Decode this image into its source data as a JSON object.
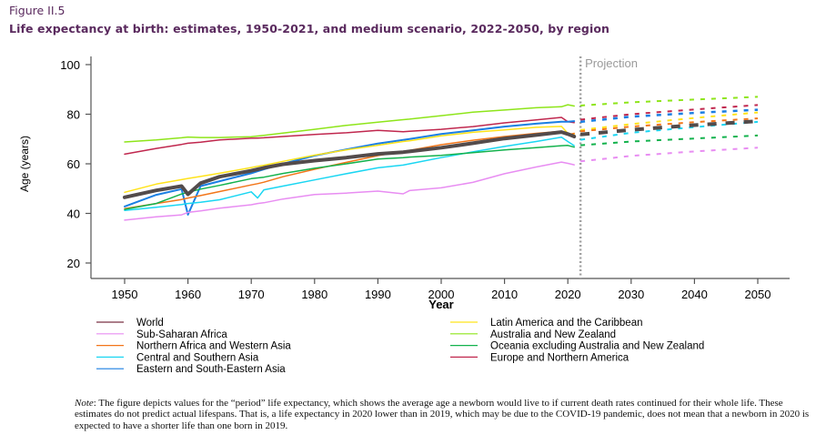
{
  "figure": {
    "label": "Figure II.5",
    "title": "Life expectancy at birth: estimates, 1950-2021, and medium scenario, 2022-2050, by region"
  },
  "note": {
    "prefix": "Note",
    "text": ": The figure depicts values for the “period” life expectancy, which shows the average age a newborn would live to if current death rates continued for their whole life. These estimates do not predict actual lifespans. That is, a life expectancy in 2020 lower than in 2019, which may be due to the COVID-19 pandemic, does not mean that a newborn in 2020 is expected to have a shorter life than one born in 2019."
  },
  "chart_data": {
    "type": "line",
    "title": "Life expectancy at birth: estimates, 1950-2021, and medium scenario, 2022-2050, by region",
    "xlabel": "Year",
    "ylabel": "Age (years)",
    "xlim": [
      1945,
      2055
    ],
    "ylim": [
      17,
      102
    ],
    "xticks": [
      1950,
      1960,
      1970,
      1980,
      1990,
      2000,
      2010,
      2020,
      2030,
      2040,
      2050
    ],
    "yticks": [
      20,
      40,
      60,
      80,
      100
    ],
    "grid": false,
    "projection_start": 2022,
    "projection_label": "Projection",
    "legend_position": "bottom",
    "estimate_years": [
      1950,
      1955,
      1959,
      1960,
      1962,
      1965,
      1970,
      1971,
      1972,
      1975,
      1980,
      1985,
      1990,
      1994,
      1995,
      2000,
      2005,
      2010,
      2015,
      2019,
      2020,
      2021
    ],
    "projection_years": [
      2022,
      2030,
      2040,
      2050
    ],
    "series": [
      {
        "name": "Europe and Northern America",
        "color": "#c0274e",
        "width": 1.5,
        "values": [
          63.9,
          66.2,
          67.8,
          68.3,
          68.7,
          69.6,
          70.3,
          70.4,
          70.5,
          71.0,
          71.8,
          72.5,
          73.5,
          72.9,
          73.1,
          73.9,
          75.0,
          76.5,
          77.7,
          78.7,
          77.0,
          76.6
        ],
        "projection": [
          77.8,
          80.0,
          81.9,
          83.7
        ]
      },
      {
        "name": "Australia and New Zealand",
        "color": "#8ee51a",
        "width": 1.5,
        "values": [
          68.8,
          69.6,
          70.5,
          70.8,
          70.6,
          70.6,
          70.9,
          71.2,
          71.5,
          72.4,
          73.9,
          75.5,
          76.8,
          77.8,
          78.0,
          79.4,
          80.8,
          81.7,
          82.6,
          83.0,
          83.8,
          83.3
        ],
        "projection": [
          83.5,
          84.8,
          85.9,
          87.0
        ]
      },
      {
        "name": "Eastern and South-Eastern Asia",
        "color": "#1a7fe3",
        "width": 2,
        "values": [
          42.8,
          47.5,
          49.8,
          39.5,
          51.0,
          53.0,
          56.2,
          57.0,
          57.8,
          60.0,
          63.3,
          65.8,
          68.2,
          69.6,
          70.0,
          72.0,
          73.5,
          75.0,
          76.2,
          77.0,
          77.0,
          77.2
        ],
        "projection": [
          76.9,
          79.0,
          80.5,
          81.8
        ]
      },
      {
        "name": "Latin America and the Caribbean",
        "color": "#ffe31a",
        "width": 1.5,
        "values": [
          48.5,
          51.8,
          53.6,
          54.1,
          54.9,
          56.2,
          58.5,
          59.0,
          59.4,
          61.0,
          63.5,
          65.6,
          67.5,
          69.0,
          69.3,
          71.3,
          72.7,
          73.7,
          74.7,
          75.1,
          72.3,
          71.9
        ],
        "projection": [
          73.6,
          76.0,
          78.5,
          80.7
        ]
      },
      {
        "name": "Northern Africa and Western Asia",
        "color": "#f2761a",
        "width": 1.5,
        "values": [
          41.9,
          44.0,
          45.6,
          46.2,
          47.2,
          48.8,
          51.5,
          52.0,
          52.6,
          54.8,
          57.8,
          60.6,
          63.3,
          65.0,
          65.4,
          67.7,
          69.5,
          71.0,
          72.3,
          73.1,
          71.7,
          72.3
        ],
        "projection": [
          73.1,
          75.0,
          76.8,
          78.3
        ]
      },
      {
        "name": "World",
        "color": "#534b4b",
        "width": 4,
        "values": [
          46.5,
          49.3,
          51.0,
          47.7,
          52.2,
          54.8,
          57.2,
          57.8,
          58.4,
          59.8,
          61.3,
          62.5,
          64.0,
          64.7,
          65.0,
          66.5,
          68.3,
          70.2,
          71.6,
          72.8,
          72.0,
          71.0
        ],
        "projection": [
          71.8,
          73.7,
          75.6,
          77.2
        ]
      },
      {
        "name": "Central and Southern Asia",
        "color": "#1ad6f2",
        "width": 1.5,
        "values": [
          41.2,
          42.5,
          43.6,
          44.0,
          44.5,
          45.5,
          48.7,
          46.2,
          49.5,
          51.0,
          53.5,
          56.0,
          58.4,
          59.5,
          60.0,
          62.5,
          64.8,
          67.0,
          69.0,
          70.7,
          69.0,
          67.3
        ],
        "projection": [
          69.7,
          72.5,
          74.8,
          76.9
        ]
      },
      {
        "name": "Oceania excluding Australia and New Zealand",
        "color": "#13b24d",
        "width": 1.5,
        "values": [
          41.6,
          44.0,
          47.8,
          48.5,
          49.8,
          51.3,
          54.0,
          54.3,
          54.6,
          56.1,
          58.2,
          60.0,
          61.9,
          62.5,
          62.7,
          63.4,
          64.5,
          65.6,
          66.5,
          67.3,
          67.4,
          66.7
        ],
        "projection": [
          67.5,
          69.0,
          70.2,
          71.4
        ]
      },
      {
        "name": "Sub-Saharan Africa",
        "color": "#e88df2",
        "width": 1.5,
        "values": [
          37.3,
          38.6,
          39.4,
          40.4,
          41.0,
          42.1,
          43.5,
          44.0,
          44.3,
          45.8,
          47.6,
          48.2,
          49.0,
          47.9,
          49.2,
          50.3,
          52.5,
          56.0,
          58.7,
          60.7,
          60.2,
          59.6
        ],
        "projection": [
          61.0,
          63.2,
          65.0,
          66.5
        ]
      }
    ],
    "legend": {
      "left": [
        "World",
        "Sub-Saharan Africa",
        "Northern Africa and Western Asia",
        "Central and Southern Asia",
        "Eastern and South-Eastern Asia"
      ],
      "right": [
        "Latin America and the Caribbean",
        "Australia and New Zealand",
        "Oceania excluding Australia and New Zealand",
        "Europe and Northern America"
      ]
    }
  }
}
